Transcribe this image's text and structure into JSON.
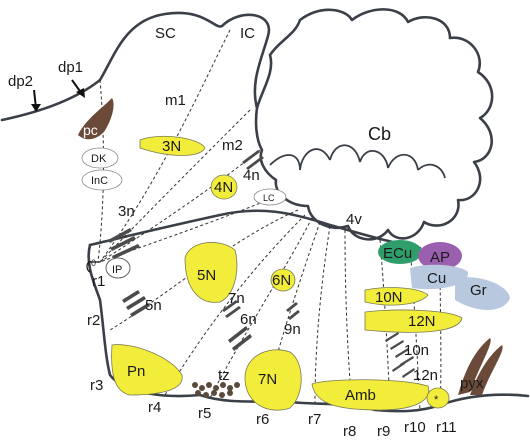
{
  "labels": {
    "sc": "SC",
    "ic": "IC",
    "dp2": "dp2",
    "dp1": "dp1",
    "m1": "m1",
    "pc": "pc",
    "n3N": "3N",
    "m2": "m2",
    "cb": "Cb",
    "n4n": "4n",
    "n4N": "4N",
    "dk": "DK",
    "inc": "InC",
    "lc": "LC",
    "n3n": "3n",
    "v4v": "4v",
    "ecu": "ECu",
    "ap": "AP",
    "cu": "Cu",
    "gr": "Gr",
    "r0": "r0",
    "ip": "IP",
    "r1": "r1",
    "n5N": "5N",
    "n6N": "6N",
    "n10N": "10N",
    "n12N": "12N",
    "n5n": "5n",
    "n7n": "7n",
    "r2": "r2",
    "n6n": "6n",
    "n9n": "9n",
    "n10n": "10n",
    "pn": "Pn",
    "n12n": "12n",
    "tz": "tz",
    "n7N": "7N",
    "amb": "Amb",
    "star": "*",
    "pyx": "pyx",
    "r3": "r3",
    "r4": "r4",
    "r5": "r5",
    "r6": "r6",
    "r7": "r7",
    "r8": "r8",
    "r9": "r9",
    "r10": "r10",
    "r11": "r11"
  },
  "colors": {
    "nucleus": "#f2ec3a",
    "pc": "#6b4a3a",
    "ecu": "#2f9e6a",
    "ap": "#9b5fb0",
    "cu_gr": "#b7c8df",
    "outline": "#3a3f48"
  }
}
